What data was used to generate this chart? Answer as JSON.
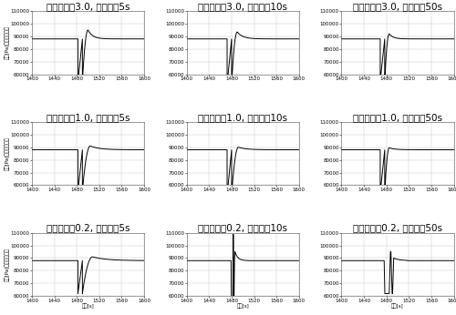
{
  "titles": [
    [
      "比例ゲイン3.0, 積分時間5s",
      "比例ゲイン3.0, 積分時間10s",
      "比例ゲイン3.0, 積分時間50s"
    ],
    [
      "比例ゲイン1.0, 積分時間5s",
      "比例ゲイン1.0, 積分時間10s",
      "比例ゲイン1.0, 積分時間50s"
    ],
    [
      "比例ゲイン0.2, 積分時間5s",
      "比例ゲイン0.2, 積分時間10s",
      "比例ゲイン0.2, 積分時間50s"
    ]
  ],
  "xlabel": "時間[s]",
  "ylabel": "圧力[Pa]（ゲージ圧）",
  "xlim": [
    1400,
    1600
  ],
  "ylim_bottom": 60000,
  "ylim_top": 110000,
  "yticks": [
    60000,
    70000,
    80000,
    90000,
    100000,
    110000
  ],
  "xticks": [
    1400,
    1440,
    1480,
    1520,
    1560,
    1600
  ],
  "steady": 88000,
  "title_fontsize": 7.5,
  "tick_fontsize": 4,
  "label_fontsize": 4,
  "line_color": "#000000",
  "bg_color": "#ffffff",
  "grid_color": "#aaaaaa",
  "border_color": "#555555"
}
